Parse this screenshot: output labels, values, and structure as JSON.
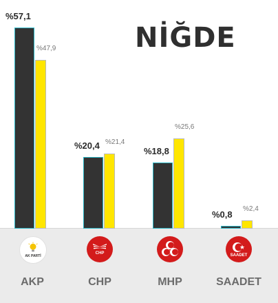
{
  "title": "NİĞDE",
  "chart_data": {
    "type": "bar",
    "categories": [
      "AKP",
      "CHP",
      "MHP",
      "SAADET"
    ],
    "series": [
      {
        "values": [
          57.1,
          20.4,
          18.8,
          0.8
        ],
        "labels": [
          "%57,1",
          "%20,4",
          "%18,8",
          "%0,8"
        ],
        "color": "#333333"
      },
      {
        "values": [
          47.9,
          21.4,
          25.6,
          2.4
        ],
        "labels": [
          "%47,9",
          "%21,4",
          "%25,6",
          "%2,4"
        ],
        "color": "#ffe600"
      }
    ],
    "ylim": [
      0,
      60
    ],
    "grid": false,
    "legend": "none"
  },
  "parties": [
    {
      "name": "AKP",
      "logo_icon": "akp-logo-icon",
      "logo_text": "AK PARTİ"
    },
    {
      "name": "CHP",
      "logo_icon": "chp-logo-icon",
      "logo_text": "CHP"
    },
    {
      "name": "MHP",
      "logo_icon": "mhp-logo-icon",
      "logo_text": ""
    },
    {
      "name": "SAADET",
      "logo_icon": "saadet-logo-icon",
      "logo_text": "SAADET"
    }
  ]
}
